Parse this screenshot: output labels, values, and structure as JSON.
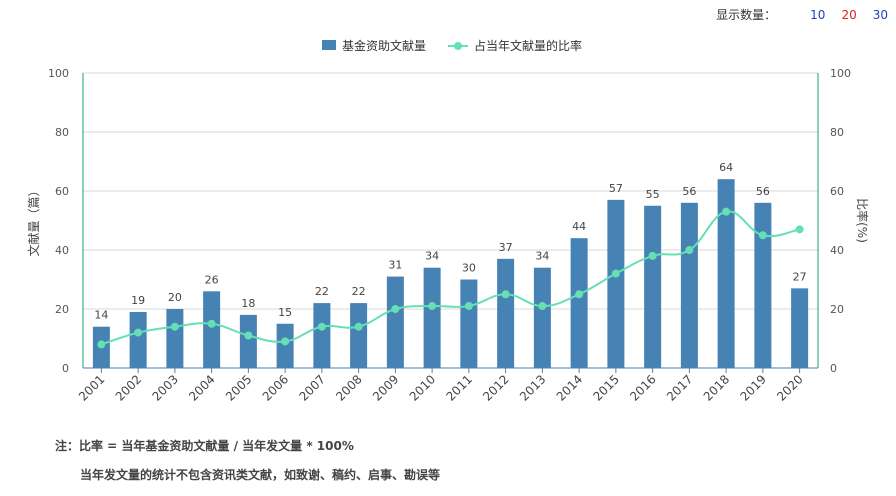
{
  "display_count": {
    "label": "显示数量：",
    "options": [
      "10",
      "20",
      "30"
    ]
  },
  "notes": {
    "line1": "注：比率 = 当年基金资助文献量 / 当年发文量 * 100%",
    "line2": "当年发文量的统计不包含资讯类文献，如致谢、稿约、启事、勘误等"
  },
  "chart_data": {
    "type": "bar",
    "categories": [
      "2001",
      "2002",
      "2003",
      "2004",
      "2005",
      "2006",
      "2007",
      "2008",
      "2009",
      "2010",
      "2011",
      "2012",
      "2013",
      "2014",
      "2015",
      "2016",
      "2017",
      "2018",
      "2019",
      "2020"
    ],
    "series": [
      {
        "name": "基金资助文献量",
        "type": "bar",
        "axis": "left",
        "color": "#4682b4",
        "values": [
          14,
          19,
          20,
          26,
          18,
          15,
          22,
          22,
          31,
          34,
          30,
          37,
          34,
          44,
          57,
          55,
          56,
          64,
          56,
          27
        ]
      },
      {
        "name": "占当年文献量的比率",
        "type": "line",
        "axis": "right",
        "color": "#66e0b3",
        "values": [
          8,
          12,
          14,
          15,
          11,
          9,
          14,
          14,
          20,
          21,
          21,
          25,
          21,
          25,
          32,
          38,
          40,
          53,
          45,
          47
        ]
      }
    ],
    "ylabel": "文献量（篇）",
    "y2label": "比率(%)",
    "ylim": [
      0,
      100
    ],
    "y2lim": [
      0,
      100
    ],
    "yticks": [
      0,
      20,
      40,
      60,
      80,
      100
    ],
    "grid": true,
    "legend": "top-center"
  }
}
